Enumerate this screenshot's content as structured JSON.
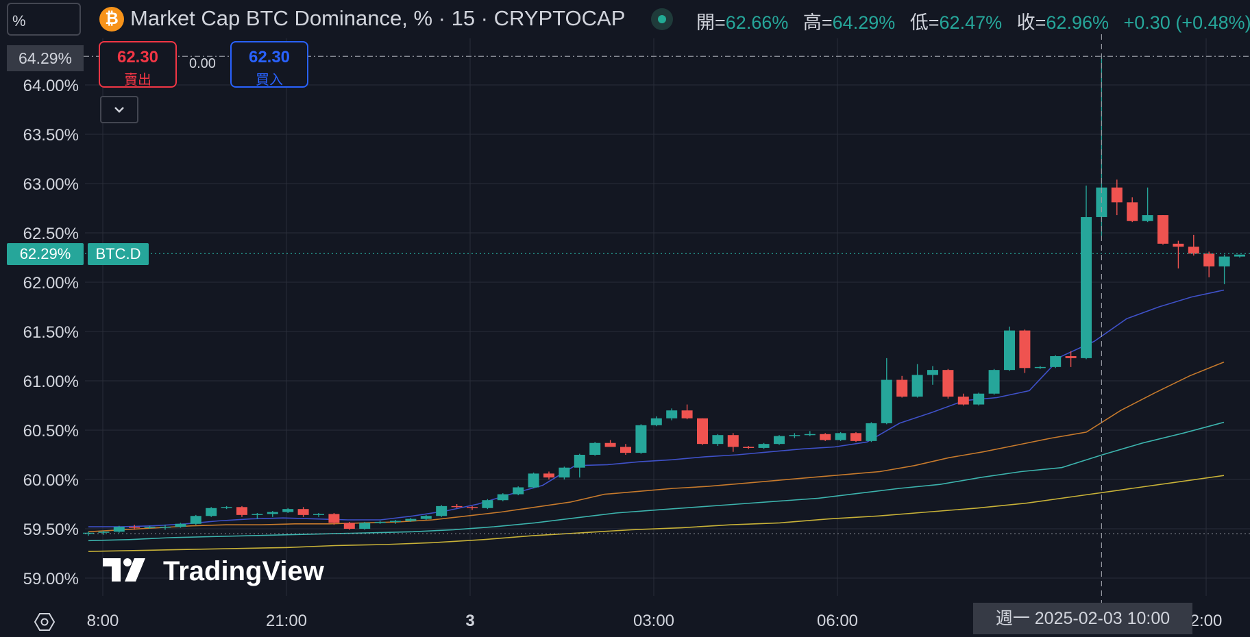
{
  "header": {
    "symbol_input": "%",
    "coin_icon": "bitcoin-icon",
    "coin_glyph": "₿",
    "title": "Market Cap BTC Dominance, % · 15 · CRYPTOCAP",
    "status_color": "#22ab94",
    "ohlc": [
      {
        "label": "開=",
        "value": "62.66%"
      },
      {
        "label": "高=",
        "value": "64.29%"
      },
      {
        "label": "低=",
        "value": "62.47%"
      },
      {
        "label": "收=",
        "value": "62.96%"
      },
      {
        "label": "",
        "value": "+0.30 (+0.48%)"
      }
    ]
  },
  "trade": {
    "sell_price": "62.30",
    "sell_label": "賣出",
    "spread": "0.00",
    "buy_price": "62.30",
    "buy_label": "買入"
  },
  "crosshair": {
    "price": "64.29%",
    "date_time": "週一 2025-02-03   10:00"
  },
  "last_price": {
    "value": "62.29%",
    "symbol": "BTC.D"
  },
  "watermark": "TradingView",
  "colors": {
    "background": "#131722",
    "grid": "#2a2e39",
    "up": "#26a69a",
    "down": "#ef5350",
    "ma1": "#3f51c9",
    "ma2": "#c77a2c",
    "ma3": "#3cb3ad",
    "ma4": "#c8b238"
  },
  "chart_data": {
    "type": "candlestick",
    "title": "Market Cap BTC Dominance, % · 15 · CRYPTOCAP",
    "y_axis": {
      "unit": "%",
      "range": [
        58.9,
        64.4
      ],
      "ticks": [
        "64.00%",
        "63.50%",
        "63.00%",
        "62.50%",
        "62.00%",
        "61.50%",
        "61.00%",
        "60.50%",
        "60.00%",
        "59.50%",
        "59.00%"
      ]
    },
    "x_axis": {
      "ticks": [
        "8:00",
        "21:00",
        "3",
        "03:00",
        "06:00",
        "2:00"
      ]
    },
    "crosshair_price": 64.29,
    "last_price_line": 62.29,
    "lower_dotted_line": 59.45,
    "candles": [
      [
        59.45,
        59.47,
        59.43,
        59.46
      ],
      [
        59.46,
        59.48,
        59.44,
        59.47
      ],
      [
        59.47,
        59.53,
        59.46,
        59.52
      ],
      [
        59.52,
        59.54,
        59.49,
        59.51
      ],
      [
        59.51,
        59.53,
        59.5,
        59.52
      ],
      [
        59.52,
        59.54,
        59.49,
        59.52
      ],
      [
        59.52,
        59.56,
        59.51,
        59.55
      ],
      [
        59.55,
        59.64,
        59.54,
        59.63
      ],
      [
        59.63,
        59.72,
        59.62,
        59.71
      ],
      [
        59.71,
        59.73,
        59.7,
        59.72
      ],
      [
        59.72,
        59.73,
        59.62,
        59.64
      ],
      [
        59.64,
        59.66,
        59.6,
        59.65
      ],
      [
        59.65,
        59.68,
        59.62,
        59.67
      ],
      [
        59.67,
        59.71,
        59.66,
        59.7
      ],
      [
        59.7,
        59.72,
        59.62,
        59.64
      ],
      [
        59.64,
        59.66,
        59.62,
        59.65
      ],
      [
        59.65,
        59.66,
        59.54,
        59.56
      ],
      [
        59.56,
        59.57,
        59.49,
        59.5
      ],
      [
        59.5,
        59.57,
        59.49,
        59.56
      ],
      [
        59.56,
        59.58,
        59.55,
        59.57
      ],
      [
        59.57,
        59.59,
        59.55,
        59.58
      ],
      [
        59.58,
        59.61,
        59.57,
        59.6
      ],
      [
        59.6,
        59.64,
        59.59,
        59.63
      ],
      [
        59.63,
        59.74,
        59.62,
        59.73
      ],
      [
        59.73,
        59.75,
        59.71,
        59.72
      ],
      [
        59.72,
        59.73,
        59.69,
        59.71
      ],
      [
        59.71,
        59.8,
        59.7,
        59.79
      ],
      [
        59.79,
        59.86,
        59.78,
        59.85
      ],
      [
        59.85,
        59.93,
        59.84,
        59.92
      ],
      [
        59.92,
        60.07,
        59.91,
        60.06
      ],
      [
        60.06,
        60.08,
        60.0,
        60.02
      ],
      [
        60.02,
        60.13,
        60.0,
        60.12
      ],
      [
        60.12,
        60.26,
        60.02,
        60.25
      ],
      [
        60.25,
        60.38,
        60.24,
        60.37
      ],
      [
        60.37,
        60.4,
        60.33,
        60.33
      ],
      [
        60.33,
        60.36,
        60.25,
        60.27
      ],
      [
        60.27,
        60.56,
        60.26,
        60.55
      ],
      [
        60.55,
        60.64,
        60.54,
        60.62
      ],
      [
        60.62,
        60.72,
        60.6,
        60.7
      ],
      [
        60.7,
        60.76,
        60.61,
        60.62
      ],
      [
        60.62,
        60.62,
        60.35,
        60.36
      ],
      [
        60.36,
        60.46,
        60.34,
        60.45
      ],
      [
        60.45,
        60.47,
        60.28,
        60.33
      ],
      [
        60.33,
        60.34,
        60.31,
        60.32
      ],
      [
        60.32,
        60.37,
        60.31,
        60.36
      ],
      [
        60.36,
        60.45,
        60.35,
        60.44
      ],
      [
        60.44,
        60.47,
        60.42,
        60.45
      ],
      [
        60.45,
        60.49,
        60.44,
        60.46
      ],
      [
        60.46,
        60.47,
        60.39,
        60.4
      ],
      [
        60.4,
        60.48,
        60.39,
        60.47
      ],
      [
        60.47,
        60.48,
        60.38,
        60.39
      ],
      [
        60.39,
        60.58,
        60.38,
        60.57
      ],
      [
        60.57,
        61.23,
        60.56,
        61.01
      ],
      [
        61.01,
        61.05,
        60.83,
        60.84
      ],
      [
        60.84,
        61.17,
        60.83,
        61.06
      ],
      [
        61.06,
        61.15,
        60.96,
        61.11
      ],
      [
        61.11,
        61.12,
        60.82,
        60.84
      ],
      [
        60.84,
        60.87,
        60.75,
        60.76
      ],
      [
        60.76,
        60.88,
        60.75,
        60.87
      ],
      [
        60.87,
        61.12,
        60.86,
        61.11
      ],
      [
        61.11,
        61.55,
        61.1,
        61.51
      ],
      [
        61.51,
        61.52,
        61.08,
        61.13
      ],
      [
        61.13,
        61.15,
        61.12,
        61.14
      ],
      [
        61.14,
        61.26,
        61.13,
        61.25
      ],
      [
        61.25,
        61.3,
        61.14,
        61.23
      ],
      [
        61.23,
        62.98,
        61.22,
        62.66
      ],
      [
        62.66,
        64.29,
        62.47,
        62.96
      ],
      [
        62.96,
        63.04,
        62.68,
        62.81
      ],
      [
        62.81,
        62.86,
        62.61,
        62.62
      ],
      [
        62.62,
        62.96,
        62.61,
        62.68
      ],
      [
        62.68,
        62.68,
        62.38,
        62.39
      ],
      [
        62.39,
        62.42,
        62.14,
        62.36
      ],
      [
        62.36,
        62.48,
        62.27,
        62.29
      ],
      [
        62.29,
        62.31,
        62.05,
        62.16
      ],
      [
        62.16,
        62.28,
        61.98,
        62.26
      ],
      [
        62.26,
        62.28,
        62.25,
        62.28
      ]
    ],
    "moving_averages": [
      {
        "values": [
          59.52,
          59.52,
          59.53,
          59.55,
          59.58,
          59.6,
          59.61,
          59.6,
          59.59,
          59.59,
          59.63,
          59.68,
          59.75,
          59.85,
          59.94,
          60.14,
          60.15,
          60.18,
          60.2,
          60.23,
          60.25,
          60.28,
          60.31,
          60.33,
          60.38,
          60.57,
          60.68,
          60.8,
          60.83,
          60.9,
          61.25,
          61.4,
          61.63,
          61.75,
          61.85,
          61.92
        ]
      },
      {
        "values": [
          59.47,
          59.49,
          59.51,
          59.53,
          59.54,
          59.54,
          59.55,
          59.55,
          59.56,
          59.57,
          59.59,
          59.63,
          59.67,
          59.72,
          59.77,
          59.85,
          59.88,
          59.91,
          59.93,
          59.96,
          59.99,
          60.02,
          60.05,
          60.08,
          60.14,
          60.22,
          60.28,
          60.35,
          60.42,
          60.48,
          60.7,
          60.88,
          61.05,
          61.19
        ]
      },
      {
        "values": [
          59.38,
          59.39,
          59.41,
          59.42,
          59.43,
          59.44,
          59.45,
          59.46,
          59.47,
          59.49,
          59.52,
          59.56,
          59.61,
          59.66,
          59.69,
          59.72,
          59.75,
          59.78,
          59.81,
          59.86,
          59.91,
          59.95,
          60.02,
          60.08,
          60.12,
          60.25,
          60.37,
          60.47,
          60.58
        ]
      },
      {
        "values": [
          59.27,
          59.28,
          59.29,
          59.3,
          59.31,
          59.33,
          59.34,
          59.36,
          59.39,
          59.43,
          59.46,
          59.49,
          59.51,
          59.54,
          59.56,
          59.6,
          59.63,
          59.67,
          59.71,
          59.76,
          59.83,
          59.9,
          59.97,
          60.04
        ]
      }
    ]
  }
}
